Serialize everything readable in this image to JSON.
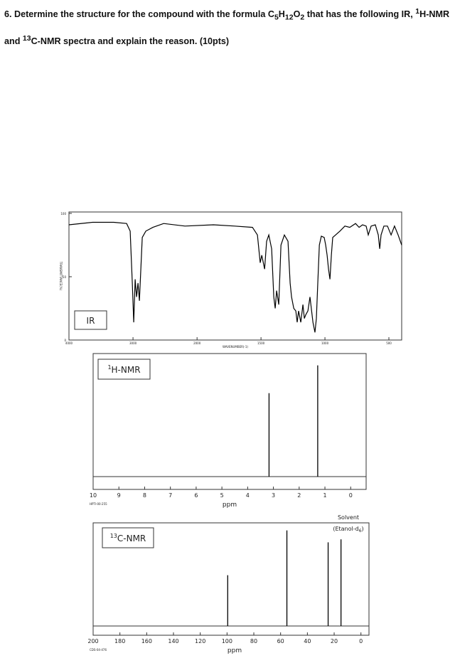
{
  "question": [
    "6. Determine the structure for the compound with the formula C",
    "5",
    "H",
    "12",
    "O",
    "2",
    " that has the following IR, ",
    "1",
    "H-NMR and ",
    "13",
    "C-NMR spectra and explain the reason. (10pts)"
  ],
  "chart_data": [
    {
      "type": "line",
      "label": "IR",
      "x_label": "WAVENUMBER(-1)",
      "y_label": "TRANSMITTANCE(%)",
      "color": "#000000",
      "xlim": [
        4000,
        400
      ],
      "scale_break": 2000,
      "xticks": [
        4000,
        3000,
        2000,
        1500,
        1000,
        500
      ],
      "ylim": [
        0,
        100
      ],
      "yticks": [
        0,
        50,
        100
      ],
      "x": [
        4000,
        3633,
        3300,
        3100,
        3044,
        3011,
        2989,
        2967,
        2944,
        2922,
        2900,
        2878,
        2856,
        2800,
        2689,
        2522,
        2189,
        1872,
        1706,
        1567,
        1528,
        1506,
        1494,
        1472,
        1456,
        1439,
        1417,
        1400,
        1389,
        1378,
        1361,
        1344,
        1317,
        1289,
        1272,
        1261,
        1244,
        1228,
        1217,
        1206,
        1189,
        1172,
        1161,
        1150,
        1133,
        1117,
        1094,
        1078,
        1067,
        1056,
        1044,
        1028,
        1006,
        994,
        983,
        972,
        961,
        950,
        939,
        917,
        883,
        844,
        806,
        761,
        733,
        706,
        678,
        661,
        639,
        606,
        583,
        572,
        561,
        539,
        511,
        483,
        456,
        428,
        400
      ],
      "values": [
        91,
        93,
        93,
        92,
        86,
        45,
        14,
        48,
        34,
        45,
        31,
        56,
        81,
        86,
        89,
        92,
        90,
        91,
        90,
        89,
        83,
        61,
        67,
        56,
        78,
        83,
        72,
        34,
        25,
        39,
        28,
        75,
        83,
        78,
        45,
        34,
        25,
        23,
        14,
        23,
        14,
        28,
        17,
        20,
        23,
        34,
        14,
        6,
        17,
        45,
        75,
        82,
        81,
        75,
        67,
        56,
        48,
        67,
        81,
        83,
        86,
        90,
        89,
        92,
        89,
        91,
        90,
        83,
        90,
        91,
        83,
        72,
        83,
        90,
        90,
        83,
        90,
        83,
        75
      ]
    },
    {
      "type": "stem",
      "label": [
        "1",
        "H-NMR"
      ],
      "x_label": "ppm",
      "code": "HPTI-00-255",
      "color": "#000000",
      "xlim": [
        10,
        -0.6
      ],
      "xticks": [
        10,
        9,
        8,
        7,
        6,
        5,
        4,
        3,
        2,
        1,
        0
      ],
      "ylim": [
        0,
        100
      ],
      "x": [
        3.17,
        1.28
      ],
      "values": [
        69,
        92
      ]
    },
    {
      "type": "stem",
      "label": [
        "13",
        "C-NMR"
      ],
      "x_label": "ppm",
      "code": "CDS-04-476",
      "color": "#000000",
      "annotation": [
        "Solvent",
        "(Etanol-d",
        "6",
        ")"
      ],
      "xlim": [
        200,
        -6
      ],
      "xticks": [
        200,
        180,
        160,
        140,
        120,
        100,
        80,
        60,
        40,
        20,
        0
      ],
      "ylim": [
        0,
        100
      ],
      "x": [
        99.5,
        55.3,
        24.5,
        14.9
      ],
      "values": [
        51,
        96,
        84,
        87
      ]
    }
  ]
}
